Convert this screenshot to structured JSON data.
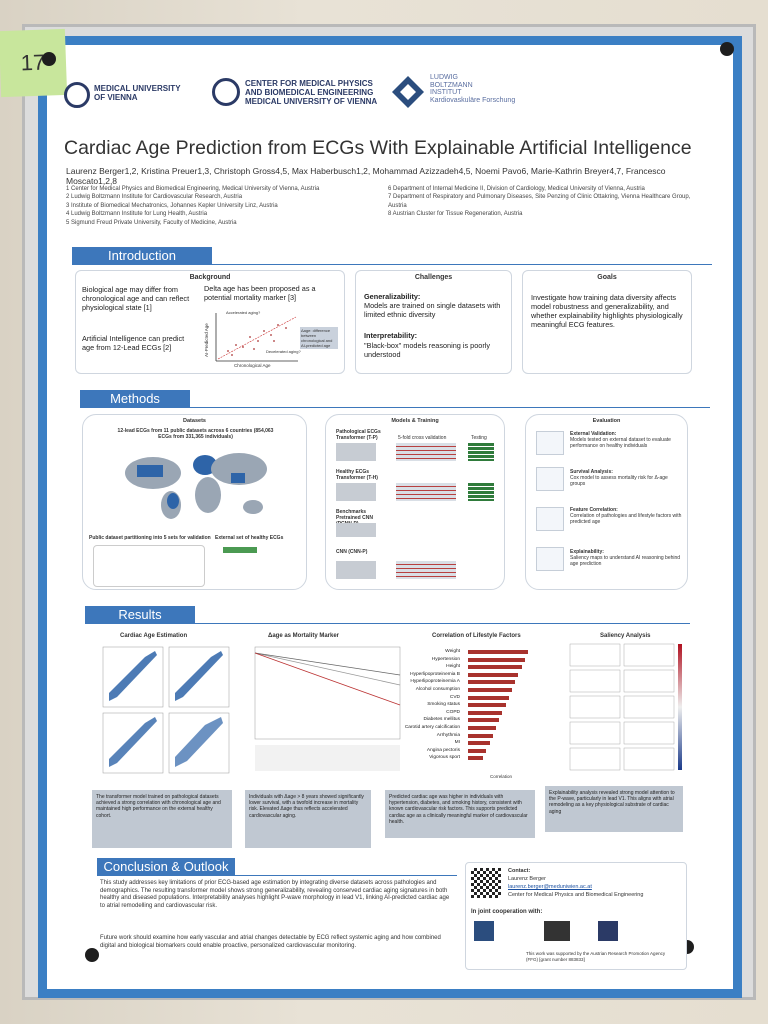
{
  "note": "17",
  "header": {
    "logos": [
      "MEDICAL UNIVERSITY\nOF VIENNA",
      "CENTER FOR MEDICAL PHYSICS\nAND BIOMEDICAL ENGINEERING\nMEDICAL UNIVERSITY OF VIENNA",
      "LUDWIG\nBOLTZMANN\nINSTITUT\nKardiovaskuläre Forschung"
    ],
    "title": "Cardiac Age Prediction from ECGs With Explainable Artificial Intelligence",
    "authors": "Laurenz Berger1,2, Kristina Preuer1,3, Christoph Gross4,5, Max Haberbusch1,2, Mohammad Azizzadeh4,5, Noemi Pavo6, Marie-Kathrin Breyer4,7, Francesco Moscato1,2,8",
    "affiliations_left": [
      "1 Center for Medical Physics and Biomedical Engineering, Medical University of Vienna, Austria",
      "2 Ludwig Boltzmann Institute for Cardiovascular Research, Austria",
      "3 Institute of Biomedical Mechatronics, Johannes Kepler University Linz, Austria",
      "4 Ludwig Boltzmann Institute for Lung Health, Austria",
      "5 Sigmund Freud Private University, Faculty of Medicine, Austria"
    ],
    "affiliations_right": [
      "6 Department of Internal Medicine II, Division of Cardiology, Medical University of Vienna, Austria",
      "7 Department of Respiratory and Pulmonary Diseases, Site Penzing of Clinic Ottakring, Vienna Healthcare Group, Austria",
      "8 Austrian Cluster for Tissue Regeneration, Austria"
    ]
  },
  "introduction": {
    "heading": "Introduction",
    "background": {
      "title": "Background",
      "biological": "Biological age may differ from chronological age and can reflect physiological state [1]",
      "ai": "Artificial Intelligence can predict age from 12-Lead ECGs [2]",
      "delta": "Delta age has been proposed as a potential mortality marker [3]",
      "y_label": "AI-Predicted Age",
      "x_label": "Chronological Age",
      "accelerated": "Accelerated aging?",
      "decelerated": "Decelerated aging?",
      "age_note": "Δage: difference between chronological and AI-predicted age"
    },
    "challenges": {
      "title": "Challenges",
      "gen_head": "Generalizability:",
      "gen_text": "Models are trained on single datasets with limited ethnic diversity",
      "int_head": "Interpretability:",
      "int_text": "\"Black-box\" models reasoning is poorly understood"
    },
    "goals": {
      "title": "Goals",
      "text": "Investigate how training data diversity affects model robustness and generalizability, and whether explainability highlights physiologically meaningful ECG features."
    }
  },
  "methods": {
    "heading": "Methods",
    "datasets": {
      "title": "Datasets",
      "summary": "12-lead ECGs from 11 public datasets across 6 countries (854,063 ECGs from 331,365 individuals)",
      "partition": "Public dataset partitioning into 5 sets for validation",
      "external": "External set of healthy ECGs"
    },
    "models": {
      "title": "Models & Training",
      "items": [
        "Pathological ECGs Transformer (T-P)",
        "Healthy ECGs Transformer (T-H)",
        "Benchmarks Pretrained CNN (PCNN-P)",
        "CNN (CNN-P)"
      ],
      "cv": "5-fold cross validation",
      "testing": "Testing"
    },
    "evaluation": {
      "title": "Evaluation",
      "items": [
        {
          "head": "External Validation:",
          "text": "Models tested on external dataset to evaluate performance on healthy individuals"
        },
        {
          "head": "Survival Analysis:",
          "text": "Cox model to assess mortality risk for Δ-age groups"
        },
        {
          "head": "Feature Correlation:",
          "text": "Correlation of pathologies and lifestyle factors with predicted age"
        },
        {
          "head": "Explainability:",
          "text": "Saliency maps to understand AI reasoning behind age prediction"
        }
      ]
    }
  },
  "results": {
    "heading": "Results",
    "panels": [
      "Cardiac Age Estimation",
      "Δage as Mortality Marker",
      "Correlation of Lifestyle Factors",
      "Saliency Analysis"
    ],
    "factors": [
      "Weight",
      "Hypertension",
      "Height",
      "Hyperlipoproteinemia B",
      "Hyperlipoproteinemia A",
      "Alcohol consumption",
      "CVD",
      "Smoking status",
      "COPD",
      "Diabetes mellitus",
      "Carotid artery calcification",
      "Arrhythmia",
      "MI",
      "Angina pectoris",
      "Vigorous sport"
    ],
    "corr_xlabel": "Correlation",
    "captions": [
      "The transformer model trained on pathological datasets achieved a strong correlation with chronological age and maintained high performance on the external healthy cohort.",
      "Individuals with Δage > 8 years showed significantly lower survival, with a twofold increase in mortality risk. Elevated Δage thus reflects accelerated cardiovascular aging.",
      "Predicted cardiac age was higher in individuals with hypertension, diabetes, and smoking history, consistent with known cardiovascular risk factors. This supports predicted cardiac age as a clinically meaningful marker of cardiovascular health.",
      "Explainability analysis revealed strong model attention to the P-wave, particularly in lead V1. This aligns with atrial remodeling as a key physiological substrate of cardiac aging"
    ]
  },
  "conclusion": {
    "heading": "Conclusion & Outlook",
    "p1": "This study addresses key limitations of prior ECG-based age estimation by integrating diverse datasets across pathologies and demographics. The resulting transformer model shows strong generalizability, revealing conserved cardiac aging signatures in both healthy and diseased populations. Interpretability analyses highlight P-wave morphology in lead V1, linking AI-predicted cardiac age to atrial remodelling and cardiovascular risk.",
    "p2": "Future work should examine how early vascular and atrial changes detectable by ECG reflect systemic aging and how combined digital and biological biomarkers could enable proactive, personalized cardiovascular monitoring."
  },
  "contact": {
    "heading": "Contact:",
    "name": "Laurenz Berger",
    "email": "laurenz.berger@meduniwien.ac.at",
    "affiliation": "Center for Medical Physics and Biomedical Engineering",
    "coop": "In joint cooperation with:",
    "funding": "This work was supported by the Austrian Research Promotion Agency (FFG) [grant number 883833]"
  }
}
